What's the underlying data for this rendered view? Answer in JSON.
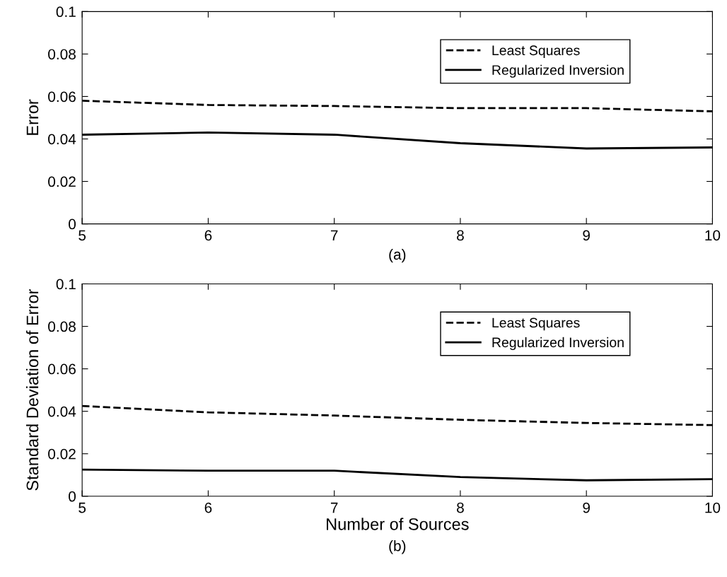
{
  "chart_data": [
    {
      "type": "line",
      "ylabel": "Error",
      "annotations": [
        "(a)"
      ],
      "x": [
        5,
        6,
        7,
        8,
        9,
        10
      ],
      "xlim": [
        5,
        10
      ],
      "xticks": [
        5,
        6,
        7,
        8,
        9,
        10
      ],
      "ylim": [
        0,
        0.1
      ],
      "yticks": [
        0,
        0.02,
        0.04,
        0.06,
        0.08,
        0.1
      ],
      "grid": false,
      "legend": "top right",
      "series": [
        {
          "name": "Least Squares",
          "color": "#000000",
          "line_style": "dashed",
          "values": [
            0.058,
            0.056,
            0.0555,
            0.0545,
            0.0545,
            0.053
          ]
        },
        {
          "name": "Regularized Inversion",
          "color": "#000000",
          "line_style": "solid",
          "values": [
            0.042,
            0.043,
            0.042,
            0.038,
            0.0355,
            0.036
          ]
        }
      ]
    },
    {
      "type": "line",
      "xlabel": "Number of Sources",
      "ylabel": "Standard Deviation of Error",
      "annotations": [
        "(b)"
      ],
      "x": [
        5,
        6,
        7,
        8,
        9,
        10
      ],
      "xlim": [
        5,
        10
      ],
      "xticks": [
        5,
        6,
        7,
        8,
        9,
        10
      ],
      "ylim": [
        0,
        0.1
      ],
      "yticks": [
        0,
        0.02,
        0.04,
        0.06,
        0.08,
        0.1
      ],
      "grid": false,
      "legend": "top right",
      "series": [
        {
          "name": "Least Squares",
          "color": "#000000",
          "line_style": "dashed",
          "values": [
            0.0425,
            0.0395,
            0.038,
            0.036,
            0.0345,
            0.0335
          ]
        },
        {
          "name": "Regularized Inversion",
          "color": "#000000",
          "line_style": "solid",
          "values": [
            0.0125,
            0.012,
            0.012,
            0.009,
            0.0075,
            0.008
          ]
        }
      ]
    }
  ]
}
